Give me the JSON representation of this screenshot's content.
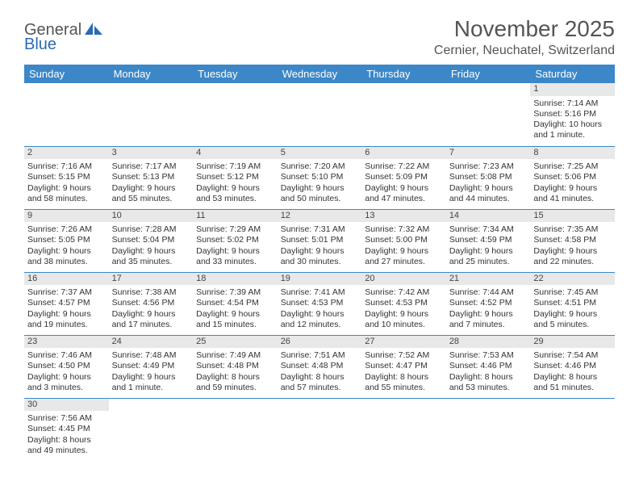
{
  "logo": {
    "text1": "General",
    "text2": "Blue"
  },
  "title": "November 2025",
  "location": "Cernier, Neuchatel, Switzerland",
  "colors": {
    "header_bg": "#3b87c8",
    "header_text": "#ffffff",
    "daynum_bg": "#e8e8e8",
    "row_border": "#3b87c8"
  },
  "weekdays": [
    "Sunday",
    "Monday",
    "Tuesday",
    "Wednesday",
    "Thursday",
    "Friday",
    "Saturday"
  ],
  "weeks": [
    [
      null,
      null,
      null,
      null,
      null,
      null,
      {
        "n": "1",
        "sr": "Sunrise: 7:14 AM",
        "ss": "Sunset: 5:16 PM",
        "dl": "Daylight: 10 hours and 1 minute."
      }
    ],
    [
      {
        "n": "2",
        "sr": "Sunrise: 7:16 AM",
        "ss": "Sunset: 5:15 PM",
        "dl": "Daylight: 9 hours and 58 minutes."
      },
      {
        "n": "3",
        "sr": "Sunrise: 7:17 AM",
        "ss": "Sunset: 5:13 PM",
        "dl": "Daylight: 9 hours and 55 minutes."
      },
      {
        "n": "4",
        "sr": "Sunrise: 7:19 AM",
        "ss": "Sunset: 5:12 PM",
        "dl": "Daylight: 9 hours and 53 minutes."
      },
      {
        "n": "5",
        "sr": "Sunrise: 7:20 AM",
        "ss": "Sunset: 5:10 PM",
        "dl": "Daylight: 9 hours and 50 minutes."
      },
      {
        "n": "6",
        "sr": "Sunrise: 7:22 AM",
        "ss": "Sunset: 5:09 PM",
        "dl": "Daylight: 9 hours and 47 minutes."
      },
      {
        "n": "7",
        "sr": "Sunrise: 7:23 AM",
        "ss": "Sunset: 5:08 PM",
        "dl": "Daylight: 9 hours and 44 minutes."
      },
      {
        "n": "8",
        "sr": "Sunrise: 7:25 AM",
        "ss": "Sunset: 5:06 PM",
        "dl": "Daylight: 9 hours and 41 minutes."
      }
    ],
    [
      {
        "n": "9",
        "sr": "Sunrise: 7:26 AM",
        "ss": "Sunset: 5:05 PM",
        "dl": "Daylight: 9 hours and 38 minutes."
      },
      {
        "n": "10",
        "sr": "Sunrise: 7:28 AM",
        "ss": "Sunset: 5:04 PM",
        "dl": "Daylight: 9 hours and 35 minutes."
      },
      {
        "n": "11",
        "sr": "Sunrise: 7:29 AM",
        "ss": "Sunset: 5:02 PM",
        "dl": "Daylight: 9 hours and 33 minutes."
      },
      {
        "n": "12",
        "sr": "Sunrise: 7:31 AM",
        "ss": "Sunset: 5:01 PM",
        "dl": "Daylight: 9 hours and 30 minutes."
      },
      {
        "n": "13",
        "sr": "Sunrise: 7:32 AM",
        "ss": "Sunset: 5:00 PM",
        "dl": "Daylight: 9 hours and 27 minutes."
      },
      {
        "n": "14",
        "sr": "Sunrise: 7:34 AM",
        "ss": "Sunset: 4:59 PM",
        "dl": "Daylight: 9 hours and 25 minutes."
      },
      {
        "n": "15",
        "sr": "Sunrise: 7:35 AM",
        "ss": "Sunset: 4:58 PM",
        "dl": "Daylight: 9 hours and 22 minutes."
      }
    ],
    [
      {
        "n": "16",
        "sr": "Sunrise: 7:37 AM",
        "ss": "Sunset: 4:57 PM",
        "dl": "Daylight: 9 hours and 19 minutes."
      },
      {
        "n": "17",
        "sr": "Sunrise: 7:38 AM",
        "ss": "Sunset: 4:56 PM",
        "dl": "Daylight: 9 hours and 17 minutes."
      },
      {
        "n": "18",
        "sr": "Sunrise: 7:39 AM",
        "ss": "Sunset: 4:54 PM",
        "dl": "Daylight: 9 hours and 15 minutes."
      },
      {
        "n": "19",
        "sr": "Sunrise: 7:41 AM",
        "ss": "Sunset: 4:53 PM",
        "dl": "Daylight: 9 hours and 12 minutes."
      },
      {
        "n": "20",
        "sr": "Sunrise: 7:42 AM",
        "ss": "Sunset: 4:53 PM",
        "dl": "Daylight: 9 hours and 10 minutes."
      },
      {
        "n": "21",
        "sr": "Sunrise: 7:44 AM",
        "ss": "Sunset: 4:52 PM",
        "dl": "Daylight: 9 hours and 7 minutes."
      },
      {
        "n": "22",
        "sr": "Sunrise: 7:45 AM",
        "ss": "Sunset: 4:51 PM",
        "dl": "Daylight: 9 hours and 5 minutes."
      }
    ],
    [
      {
        "n": "23",
        "sr": "Sunrise: 7:46 AM",
        "ss": "Sunset: 4:50 PM",
        "dl": "Daylight: 9 hours and 3 minutes."
      },
      {
        "n": "24",
        "sr": "Sunrise: 7:48 AM",
        "ss": "Sunset: 4:49 PM",
        "dl": "Daylight: 9 hours and 1 minute."
      },
      {
        "n": "25",
        "sr": "Sunrise: 7:49 AM",
        "ss": "Sunset: 4:48 PM",
        "dl": "Daylight: 8 hours and 59 minutes."
      },
      {
        "n": "26",
        "sr": "Sunrise: 7:51 AM",
        "ss": "Sunset: 4:48 PM",
        "dl": "Daylight: 8 hours and 57 minutes."
      },
      {
        "n": "27",
        "sr": "Sunrise: 7:52 AM",
        "ss": "Sunset: 4:47 PM",
        "dl": "Daylight: 8 hours and 55 minutes."
      },
      {
        "n": "28",
        "sr": "Sunrise: 7:53 AM",
        "ss": "Sunset: 4:46 PM",
        "dl": "Daylight: 8 hours and 53 minutes."
      },
      {
        "n": "29",
        "sr": "Sunrise: 7:54 AM",
        "ss": "Sunset: 4:46 PM",
        "dl": "Daylight: 8 hours and 51 minutes."
      }
    ],
    [
      {
        "n": "30",
        "sr": "Sunrise: 7:56 AM",
        "ss": "Sunset: 4:45 PM",
        "dl": "Daylight: 8 hours and 49 minutes."
      },
      null,
      null,
      null,
      null,
      null,
      null
    ]
  ]
}
